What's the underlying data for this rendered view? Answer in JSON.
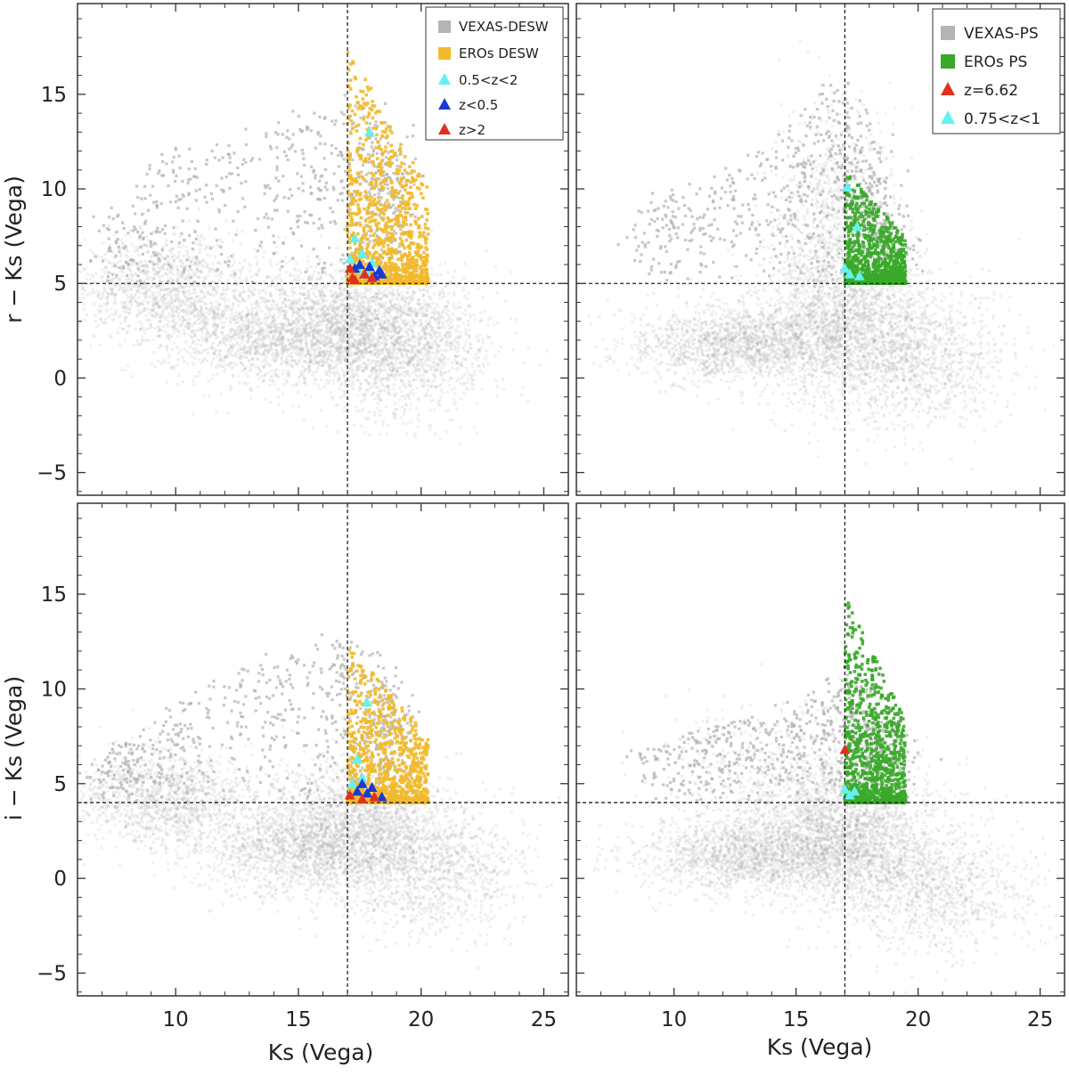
{
  "chart_data": [
    {
      "id": "top-left",
      "type": "scatter",
      "xlabel": "",
      "ylabel": "r − Ks (Vega)",
      "xlim": [
        6,
        26
      ],
      "ylim": [
        -6.2,
        19.8
      ],
      "xticks": [
        10,
        15,
        20,
        25
      ],
      "yticks": [
        -5,
        0,
        5,
        10,
        15
      ],
      "xtick_labels": [],
      "ytick_labels": [
        "−5",
        "0",
        "5",
        "10",
        "15"
      ],
      "cut_x": 17.0,
      "cut_y": 5.0,
      "cloud": {
        "color": "#a0a0a0",
        "components": [
          {
            "cx": 9.5,
            "cy": 4.8,
            "sx": 1.8,
            "sy": 1.4,
            "w": 0.22
          },
          {
            "cx": 13.5,
            "cy": 2.0,
            "sx": 2.0,
            "sy": 1.2,
            "w": 0.2
          },
          {
            "cx": 17.0,
            "cy": 3.0,
            "sx": 2.0,
            "sy": 1.6,
            "w": 0.36
          },
          {
            "cx": 19.5,
            "cy": 1.5,
            "sx": 1.8,
            "sy": 1.8,
            "w": 0.22
          }
        ],
        "upper_extent": {
          "x": [
            7,
            10,
            14,
            17,
            18.5,
            19
          ],
          "y": [
            7.5,
            12,
            13,
            15,
            13,
            10
          ]
        }
      },
      "highlight": {
        "name": "EROs DESW",
        "color": "#f2b92a",
        "x_range": [
          17.0,
          20.3
        ],
        "y_min": 5.0,
        "y_max": 17.5
      },
      "markers": [
        {
          "name": "0.5<z<2",
          "color": "#66f0f0",
          "x": [
            17.3,
            17.6,
            17.9,
            17.1,
            18.0,
            17.4,
            17.8
          ],
          "y": [
            7.4,
            6.6,
            13.0,
            6.3,
            6.1,
            5.8,
            5.5
          ]
        },
        {
          "name": "z<0.5",
          "color": "#1a3ad4",
          "x": [
            17.5,
            17.9,
            18.3,
            17.7,
            18.1,
            17.3,
            18.4
          ],
          "y": [
            6.0,
            5.9,
            5.7,
            5.5,
            5.4,
            5.8,
            5.5
          ]
        },
        {
          "name": "z>2",
          "color": "#e03020",
          "x": [
            17.1,
            17.2,
            17.7,
            17.3,
            18.0
          ],
          "y": [
            5.8,
            5.3,
            5.5,
            5.2,
            5.3
          ]
        }
      ],
      "legend": {
        "position": "top-right",
        "entries": [
          {
            "label": "VEXAS-DESW",
            "shape": "square",
            "color": "#b4b4b4"
          },
          {
            "label": "EROs DESW",
            "shape": "square",
            "color": "#f2b92a"
          },
          {
            "label": "0.5<z<2",
            "shape": "triangle",
            "color": "#66f0f0"
          },
          {
            "label": "z<0.5",
            "shape": "triangle",
            "color": "#1a3ad4"
          },
          {
            "label": "z>2",
            "shape": "triangle",
            "color": "#e03020"
          }
        ]
      }
    },
    {
      "id": "top-right",
      "type": "scatter",
      "xlabel": "",
      "ylabel": "",
      "xlim": [
        6,
        26
      ],
      "ylim": [
        -6.2,
        19.8
      ],
      "xticks": [
        10,
        15,
        20,
        25
      ],
      "yticks": [
        -5,
        0,
        5,
        10,
        15
      ],
      "xtick_labels": [],
      "ytick_labels": [],
      "cut_x": 17.0,
      "cut_y": 5.0,
      "cloud": {
        "color": "#a0a0a0",
        "components": [
          {
            "cx": 12.5,
            "cy": 1.8,
            "sx": 2.2,
            "sy": 1.0,
            "w": 0.3
          },
          {
            "cx": 17.0,
            "cy": 3.0,
            "sx": 1.8,
            "sy": 2.2,
            "w": 0.36
          },
          {
            "cx": 20.0,
            "cy": 1.0,
            "sx": 2.0,
            "sy": 1.8,
            "w": 0.2
          },
          {
            "cx": 16.5,
            "cy": 8.0,
            "sx": 1.2,
            "sy": 3.0,
            "w": 0.14
          }
        ],
        "upper_extent": {
          "x": [
            9,
            12,
            15,
            17,
            18,
            19
          ],
          "y": [
            9,
            11,
            13,
            16,
            12,
            8
          ]
        }
      },
      "highlight": {
        "name": "EROs PS",
        "color": "#3aa82a",
        "x_range": [
          17.0,
          19.5
        ],
        "y_min": 5.0,
        "y_max": 11.0
      },
      "markers": [
        {
          "name": "z=6.62",
          "color": "#e03020",
          "x": [],
          "y": []
        },
        {
          "name": "0.75<z<1",
          "color": "#66f0f0",
          "x": [
            17.1,
            17.5,
            17.0,
            17.2,
            17.6
          ],
          "y": [
            10.1,
            8.0,
            5.8,
            5.5,
            5.4
          ]
        }
      ],
      "legend": {
        "position": "top-right",
        "entries": [
          {
            "label": "VEXAS-PS",
            "shape": "square",
            "color": "#b4b4b4"
          },
          {
            "label": "EROs PS",
            "shape": "square",
            "color": "#3aa82a"
          },
          {
            "label": "z=6.62",
            "shape": "triangle",
            "color": "#e03020"
          },
          {
            "label": "0.75<z<1",
            "shape": "triangle",
            "color": "#66f0f0"
          }
        ]
      }
    },
    {
      "id": "bottom-left",
      "type": "scatter",
      "xlabel": "Ks (Vega)",
      "ylabel": "i − Ks (Vega)",
      "xlim": [
        6,
        26
      ],
      "ylim": [
        -6.2,
        19.8
      ],
      "xticks": [
        10,
        15,
        20,
        25
      ],
      "yticks": [
        -5,
        0,
        5,
        10,
        15
      ],
      "xtick_labels": [
        "10",
        "15",
        "20",
        "25"
      ],
      "ytick_labels": [
        "−5",
        "0",
        "5",
        "10",
        "15"
      ],
      "cut_x": 17.0,
      "cut_y": 4.0,
      "cloud": {
        "color": "#a0a0a0",
        "components": [
          {
            "cx": 9.5,
            "cy": 4.2,
            "sx": 2.0,
            "sy": 1.2,
            "w": 0.24
          },
          {
            "cx": 15.0,
            "cy": 1.5,
            "sx": 2.2,
            "sy": 1.2,
            "w": 0.26
          },
          {
            "cx": 17.5,
            "cy": 3.0,
            "sx": 1.8,
            "sy": 1.6,
            "w": 0.3
          },
          {
            "cx": 20.5,
            "cy": 0.5,
            "sx": 1.8,
            "sy": 1.8,
            "w": 0.2
          }
        ],
        "upper_extent": {
          "x": [
            7,
            10,
            14,
            17,
            18.5,
            19
          ],
          "y": [
            6,
            9,
            12,
            13,
            11,
            8
          ]
        }
      },
      "highlight": {
        "name": "EROs DESW",
        "color": "#f2b92a",
        "x_range": [
          17.0,
          20.3
        ],
        "y_min": 4.0,
        "y_max": 12.5
      },
      "markers": [
        {
          "name": "0.5<z<2",
          "color": "#66f0f0",
          "x": [
            17.4,
            17.8,
            17.2,
            18.0,
            17.6
          ],
          "y": [
            6.3,
            9.3,
            5.0,
            4.8,
            5.3
          ]
        },
        {
          "name": "z<0.5",
          "color": "#1a3ad4",
          "x": [
            17.6,
            18.0,
            18.4,
            17.8,
            17.4
          ],
          "y": [
            5.0,
            4.8,
            4.3,
            4.5,
            4.6
          ]
        },
        {
          "name": "z>2",
          "color": "#e03020",
          "x": [
            17.1,
            17.6,
            18.1
          ],
          "y": [
            4.4,
            4.2,
            4.3
          ]
        }
      ]
    },
    {
      "id": "bottom-right",
      "type": "scatter",
      "xlabel": "Ks (Vega)",
      "ylabel": "",
      "xlim": [
        6,
        26
      ],
      "ylim": [
        -6.2,
        19.8
      ],
      "xticks": [
        10,
        15,
        20,
        25
      ],
      "yticks": [
        -5,
        0,
        5,
        10,
        15
      ],
      "xtick_labels": [
        "10",
        "15",
        "20",
        "25"
      ],
      "ytick_labels": [],
      "cut_x": 17.0,
      "cut_y": 4.0,
      "cloud": {
        "color": "#a0a0a0",
        "components": [
          {
            "cx": 13.0,
            "cy": 1.2,
            "sx": 2.3,
            "sy": 1.0,
            "w": 0.3
          },
          {
            "cx": 17.0,
            "cy": 2.2,
            "sx": 1.8,
            "sy": 1.6,
            "w": 0.36
          },
          {
            "cx": 20.5,
            "cy": -0.5,
            "sx": 2.2,
            "sy": 1.6,
            "w": 0.2
          },
          {
            "cx": 15.0,
            "cy": 5.0,
            "sx": 2.5,
            "sy": 2.0,
            "w": 0.14
          }
        ],
        "upper_extent": {
          "x": [
            9,
            12,
            15,
            17,
            18,
            19
          ],
          "y": [
            7,
            8,
            9,
            11,
            9,
            7
          ]
        }
      },
      "highlight": {
        "name": "EROs PS",
        "color": "#3aa82a",
        "x_range": [
          17.0,
          19.5
        ],
        "y_min": 4.0,
        "y_max": 15.0
      },
      "markers": [
        {
          "name": "z=6.62",
          "color": "#e03020",
          "x": [
            17.0
          ],
          "y": [
            6.8
          ]
        },
        {
          "name": "0.75<z<1",
          "color": "#66f0f0",
          "x": [
            17.0,
            17.4,
            17.2
          ],
          "y": [
            4.7,
            4.6,
            4.4
          ]
        }
      ]
    }
  ]
}
